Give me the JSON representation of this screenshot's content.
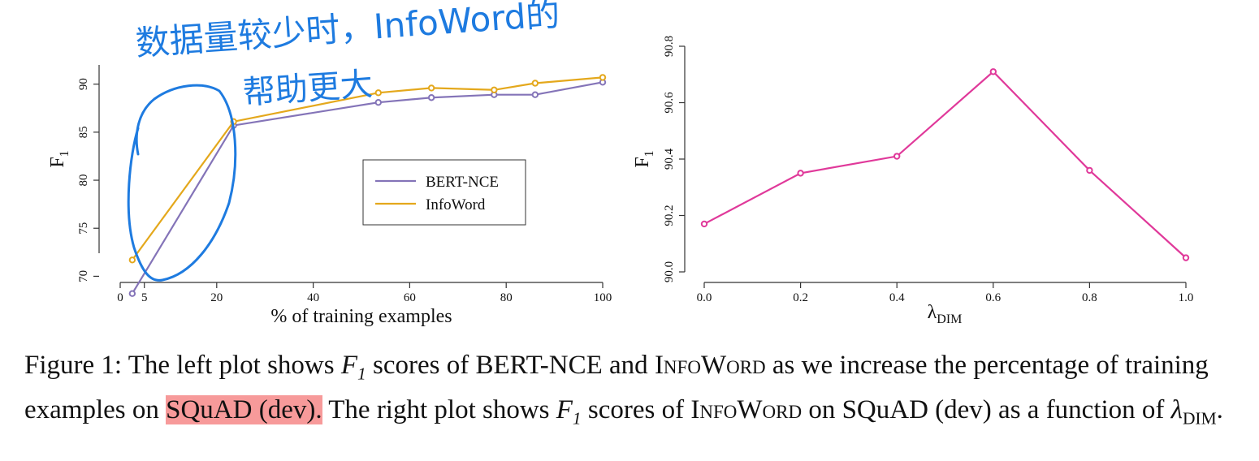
{
  "chart_data": [
    {
      "type": "line",
      "xlabel": "% of training examples",
      "ylabel": "F",
      "ylabel_sub": "1",
      "xlim": [
        0,
        100
      ],
      "ylim": [
        67.5,
        92
      ],
      "xticks": [
        "0",
        "5",
        "20",
        "40",
        "60",
        "80",
        "100"
      ],
      "yticks": [
        "70",
        "75",
        "80",
        "85",
        "90"
      ],
      "legend_position": "center-right",
      "series": [
        {
          "name": "BERT-NCE",
          "color": "#8474b8",
          "x": [
            2.5,
            23.5,
            53.5,
            64.5,
            77.5,
            86,
            100
          ],
          "y": [
            68.2,
            85.7,
            88.1,
            88.6,
            88.9,
            88.9,
            90.2
          ]
        },
        {
          "name": "InfoWord",
          "color": "#e4a81c",
          "x": [
            2.5,
            23.5,
            53.5,
            64.5,
            77.5,
            86,
            100
          ],
          "y": [
            71.7,
            86.1,
            89.1,
            89.6,
            89.4,
            90.1,
            90.7
          ]
        }
      ],
      "annotation_text": [
        "数据量较少时，InfoWord的",
        "帮助更大"
      ],
      "annotation_color": "#1e7be0"
    },
    {
      "type": "line",
      "xlabel": "λ",
      "xlabel_sub": "DIM",
      "ylabel": "F",
      "ylabel_sub": "1",
      "xlim": [
        0,
        1
      ],
      "ylim": [
        90.0,
        90.8
      ],
      "xticks": [
        "0.0",
        "0.2",
        "0.4",
        "0.6",
        "0.8",
        "1.0"
      ],
      "yticks": [
        "90.0",
        "90.2",
        "90.4",
        "90.6",
        "90.8"
      ],
      "series": [
        {
          "color": "#e0399a",
          "x": [
            0.0,
            0.2,
            0.4,
            0.6,
            0.8,
            1.0
          ],
          "y": [
            90.17,
            90.35,
            90.41,
            90.71,
            90.36,
            90.05
          ]
        }
      ]
    }
  ],
  "caption": {
    "p1": "Figure 1: The left plot shows ",
    "m1": "F",
    "m1_sub": "1",
    "p2": " scores of BERT-NCE and ",
    "sc1": "InfoWord",
    "p3": " as we increase the percentage of training examples on ",
    "highlight": "SQuAD (dev).",
    "p4": " The right plot shows ",
    "m2": "F",
    "m2_sub": "1",
    "p5": " scores of ",
    "sc2": "InfoWord",
    "p6": " on SQuAD (dev) as a function of ",
    "m3": "λ",
    "m3_sub": "DIM",
    "p7": "."
  }
}
